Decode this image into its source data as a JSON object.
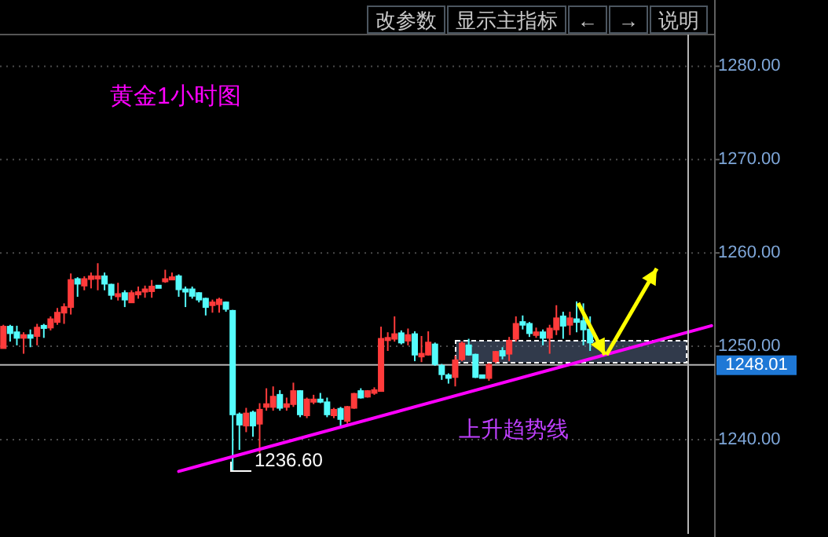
{
  "chart_data": {
    "type": "candlestick",
    "title": "黄金1小时图",
    "categories": [
      null,
      null,
      null,
      null,
      null,
      null,
      null,
      null,
      null,
      null,
      null,
      null,
      null,
      null,
      null,
      null,
      null,
      null,
      null,
      null,
      null,
      null,
      null,
      null,
      null,
      null,
      null,
      null,
      null,
      null,
      null,
      null,
      null,
      null,
      null,
      null,
      null,
      null,
      null,
      null,
      null,
      null,
      null,
      null,
      null,
      null,
      null,
      null,
      null,
      null,
      null,
      null,
      null,
      null,
      null,
      null,
      null,
      null,
      null,
      null,
      null,
      null,
      null,
      null,
      null,
      null,
      null,
      null,
      null,
      null,
      null,
      null,
      null,
      null,
      null,
      null,
      null,
      null,
      null,
      null,
      null,
      null,
      null,
      null,
      null,
      null,
      null,
      null,
      null,
      null,
      null,
      null,
      null,
      null,
      null,
      null,
      null,
      null,
      null,
      null,
      null,
      null,
      null,
      null,
      null,
      null
    ],
    "ohlc": [
      [
        1249.8,
        1252.3,
        1249.8,
        1252.1
      ],
      [
        1252.1,
        1252.3,
        1250.5,
        1251.4
      ],
      [
        1251.5,
        1252.2,
        1250.1,
        1250.9
      ],
      [
        1250.9,
        1251.5,
        1249.2,
        1251.2
      ],
      [
        1251.2,
        1251.8,
        1249.9,
        1250.9
      ],
      [
        1251.1,
        1252.4,
        1250.1,
        1252.0
      ],
      [
        1252.2,
        1252.4,
        1250.9,
        1252.0
      ],
      [
        1252.0,
        1253.2,
        1251.7,
        1252.9
      ],
      [
        1252.6,
        1254.1,
        1252.3,
        1253.6
      ],
      [
        1253.6,
        1254.6,
        1252.4,
        1254.2
      ],
      [
        1254.2,
        1257.8,
        1253.4,
        1257.1
      ],
      [
        1257.2,
        1257.4,
        1255.3,
        1256.7
      ],
      [
        1256.5,
        1257.5,
        1256.0,
        1257.2
      ],
      [
        1257.2,
        1257.9,
        1256.2,
        1257.5
      ],
      [
        1257.4,
        1258.9,
        1256.0,
        1257.5
      ],
      [
        1257.5,
        1257.9,
        1256.0,
        1256.7
      ],
      [
        1256.6,
        1256.7,
        1255.0,
        1255.5
      ],
      [
        1255.4,
        1256.8,
        1254.9,
        1255.6
      ],
      [
        1255.7,
        1256.0,
        1254.2,
        1255.0
      ],
      [
        1254.7,
        1256.0,
        1254.7,
        1255.7
      ],
      [
        1255.7,
        1256.4,
        1255.1,
        1255.8
      ],
      [
        1255.9,
        1256.5,
        1255.2,
        1256.1
      ],
      [
        1255.9,
        1257.1,
        1255.2,
        1256.4
      ],
      [
        1256.5,
        1256.5,
        1256.4,
        1256.4
      ],
      [
        1257.0,
        1258.2,
        1256.8,
        1257.2
      ],
      [
        1257.2,
        1257.9,
        1257.1,
        1257.4
      ],
      [
        1257.5,
        1257.7,
        1255.3,
        1256.1
      ],
      [
        1256.1,
        1256.4,
        1254.2,
        1256.0
      ],
      [
        1256.1,
        1256.4,
        1255.1,
        1255.4
      ],
      [
        1255.7,
        1255.8,
        1254.7,
        1255.0
      ],
      [
        1255.1,
        1255.2,
        1253.3,
        1254.2
      ],
      [
        1254.4,
        1255.0,
        1253.6,
        1254.7
      ],
      [
        1254.5,
        1255.2,
        1253.6,
        1255.0
      ],
      [
        1254.7,
        1254.8,
        1253.7,
        1254.0
      ],
      [
        1253.8,
        1253.9,
        1236.6,
        1242.7
      ],
      [
        1242.7,
        1242.9,
        1238.9,
        1241.6
      ],
      [
        1241.5,
        1243.4,
        1240.8,
        1242.8
      ],
      [
        1242.9,
        1243.1,
        1240.3,
        1241.5
      ],
      [
        1241.7,
        1243.9,
        1238.6,
        1243.2
      ],
      [
        1243.5,
        1245.5,
        1243.1,
        1243.8
      ],
      [
        1243.5,
        1245.7,
        1243.1,
        1244.6
      ],
      [
        1244.8,
        1245.3,
        1243.1,
        1243.4
      ],
      [
        1243.5,
        1244.5,
        1243.1,
        1243.8
      ],
      [
        1243.8,
        1246.1,
        1243.5,
        1245.2
      ],
      [
        1245.2,
        1245.3,
        1242.4,
        1242.7
      ],
      [
        1242.6,
        1244.5,
        1242.3,
        1244.3
      ],
      [
        1244.1,
        1244.8,
        1243.8,
        1244.3
      ],
      [
        1244.3,
        1245.0,
        1243.9,
        1244.1
      ],
      [
        1244.0,
        1244.5,
        1242.4,
        1242.7
      ],
      [
        1242.6,
        1243.4,
        1242.3,
        1243.2
      ],
      [
        1243.3,
        1243.5,
        1241.5,
        1242.2
      ],
      [
        1242.0,
        1243.6,
        1241.7,
        1243.5
      ],
      [
        1243.4,
        1245.0,
        1243.3,
        1244.9
      ],
      [
        1245.2,
        1245.5,
        1244.4,
        1244.5
      ],
      [
        1244.6,
        1245.3,
        1244.5,
        1245.2
      ],
      [
        1245.0,
        1245.6,
        1244.8,
        1245.3
      ],
      [
        1245.2,
        1252.1,
        1245.2,
        1250.8
      ],
      [
        1250.8,
        1251.5,
        1249.5,
        1250.9
      ],
      [
        1250.8,
        1253.2,
        1250.5,
        1251.3
      ],
      [
        1251.4,
        1251.7,
        1250.2,
        1250.4
      ],
      [
        1250.6,
        1251.9,
        1250.1,
        1251.2
      ],
      [
        1251.3,
        1251.6,
        1248.4,
        1249.1
      ],
      [
        1248.9,
        1251.1,
        1248.3,
        1249.2
      ],
      [
        1249.1,
        1251.6,
        1249.0,
        1250.4
      ],
      [
        1250.2,
        1250.4,
        1247.9,
        1248.1
      ],
      [
        1247.9,
        1248.1,
        1246.4,
        1247.0
      ],
      [
        1246.9,
        1247.1,
        1246.0,
        1246.6
      ],
      [
        1246.7,
        1249.0,
        1245.7,
        1248.5
      ],
      [
        1248.6,
        1250.5,
        1248.4,
        1250.3
      ],
      [
        1250.1,
        1250.8,
        1249.0,
        1249.1
      ],
      [
        1249.1,
        1249.2,
        1246.6,
        1246.7
      ],
      [
        1246.9,
        1246.9,
        1246.6,
        1246.6
      ],
      [
        1246.6,
        1248.2,
        1246.3,
        1248.0
      ],
      [
        1248.4,
        1249.5,
        1248.2,
        1249.4
      ],
      [
        1249.5,
        1249.9,
        1248.6,
        1249.0
      ],
      [
        1249.2,
        1251.0,
        1248.4,
        1250.6
      ],
      [
        1250.8,
        1253.2,
        1250.5,
        1252.4
      ],
      [
        1252.6,
        1253.3,
        1251.8,
        1252.3
      ],
      [
        1252.4,
        1252.6,
        1251.0,
        1251.4
      ],
      [
        1251.2,
        1252.0,
        1250.9,
        1251.5
      ],
      [
        1251.5,
        1251.8,
        1250.1,
        1250.9
      ],
      [
        1250.9,
        1252.3,
        1249.2,
        1251.9
      ],
      [
        1251.8,
        1254.4,
        1251.2,
        1253.0
      ],
      [
        1253.2,
        1253.7,
        1250.8,
        1252.2
      ],
      [
        1252.3,
        1253.7,
        1251.2,
        1253.0
      ],
      [
        1252.9,
        1254.8,
        1251.5,
        1252.6
      ],
      [
        1252.7,
        1254.6,
        1250.1,
        1251.8
      ],
      [
        1251.8,
        1253.2,
        1249.5,
        1250.4
      ],
      null,
      null,
      null,
      null,
      null,
      null,
      null,
      null,
      null,
      null,
      null,
      null,
      null,
      null,
      null,
      null,
      null,
      null
    ],
    "colors": [
      "#ff3b3b",
      "#54fcfc",
      "#54fcfc",
      "#ff3b3b",
      "#54fcfc",
      "#ff3b3b",
      "#54fcfc",
      "#ff3b3b",
      "#ff3b3b",
      "#ff3b3b",
      "#ff3b3b",
      "#54fcfc",
      "#ff3b3b",
      "#ff3b3b",
      "#ff3b3b",
      "#54fcfc",
      "#54fcfc",
      "#ff3b3b",
      "#54fcfc",
      "#ff3b3b",
      "#ff3b3b",
      "#ff3b3b",
      "#ff3b3b",
      "#54fcfc",
      "#ff3b3b",
      "#ff3b3b",
      "#54fcfc",
      "#54fcfc",
      "#54fcfc",
      "#54fcfc",
      "#54fcfc",
      "#ff3b3b",
      "#ff3b3b",
      "#54fcfc",
      "#54fcfc",
      "#54fcfc",
      "#ff3b3b",
      "#54fcfc",
      "#ff3b3b",
      "#ff3b3b",
      "#ff3b3b",
      "#54fcfc",
      "#ff3b3b",
      "#ff3b3b",
      "#54fcfc",
      "#ff3b3b",
      "#ff3b3b",
      "#54fcfc",
      "#54fcfc",
      "#ff3b3b",
      "#54fcfc",
      "#ff3b3b",
      "#ff3b3b",
      "#54fcfc",
      "#ff3b3b",
      "#ff3b3b",
      "#ff3b3b",
      "#ff3b3b",
      "#ff3b3b",
      "#54fcfc",
      "#ff3b3b",
      "#54fcfc",
      "#ff3b3b",
      "#ff3b3b",
      "#54fcfc",
      "#54fcfc",
      "#54fcfc",
      "#ff3b3b",
      "#ff3b3b",
      "#54fcfc",
      "#54fcfc",
      "#54fcfc",
      "#ff3b3b",
      "#ff3b3b",
      "#54fcfc",
      "#ff3b3b",
      "#ff3b3b",
      "#54fcfc",
      "#54fcfc",
      "#ff3b3b",
      "#54fcfc",
      "#ff3b3b",
      "#ff3b3b",
      "#54fcfc",
      "#ff3b3b",
      "#54fcfc",
      "#54fcfc",
      "#54fcfc",
      null,
      null,
      null,
      null,
      null,
      null,
      null,
      null,
      null,
      null,
      null,
      null,
      null,
      null,
      null,
      null,
      null,
      null
    ],
    "series": [
      {
        "type": "line",
        "values": [
          null,
          null,
          null,
          null,
          null,
          null,
          null,
          null,
          null,
          null,
          null,
          null,
          null,
          null,
          null,
          null,
          null,
          null,
          null,
          null,
          null,
          null,
          null,
          null,
          null,
          null,
          1236.6,
          null,
          null,
          null,
          null,
          null,
          null,
          null,
          null,
          null,
          null,
          null,
          null,
          null,
          null,
          null,
          null,
          null,
          null,
          null,
          null,
          null,
          null,
          null,
          null,
          null,
          null,
          null,
          null,
          null,
          null,
          null,
          null,
          null,
          null,
          null,
          null,
          null,
          null,
          null,
          null,
          null,
          null,
          null,
          null,
          null,
          null,
          null,
          null,
          null,
          null,
          null,
          null,
          null,
          null,
          null,
          null,
          null,
          null,
          null,
          null,
          null,
          null,
          null,
          null,
          null,
          null,
          null,
          null,
          null,
          null,
          null,
          null,
          null,
          null,
          null,
          null,
          null,
          null,
          1252.2
        ],
        "color": "#ff00ff"
      }
    ],
    "ylim": [
      1229.9,
      1283.4
    ],
    "yticks": [
      {
        "value": 1240,
        "label": "1240.00"
      },
      {
        "value": 1250,
        "label": "1250.00"
      },
      {
        "value": 1260,
        "label": "1260.00"
      },
      {
        "value": 1270,
        "label": "1270.00"
      },
      {
        "value": 1280,
        "label": "1280.00"
      }
    ],
    "tick_labels": "y",
    "grid": "y",
    "ref_lines": [
      {
        "axis": "y",
        "value": 1248.01,
        "label": "1248.01",
        "color": "#b4b4b4"
      }
    ],
    "annotations": [
      "改参数",
      "显示主指标",
      "←",
      "→",
      "说明",
      "上升趋势线",
      "1236.60"
    ]
  }
}
